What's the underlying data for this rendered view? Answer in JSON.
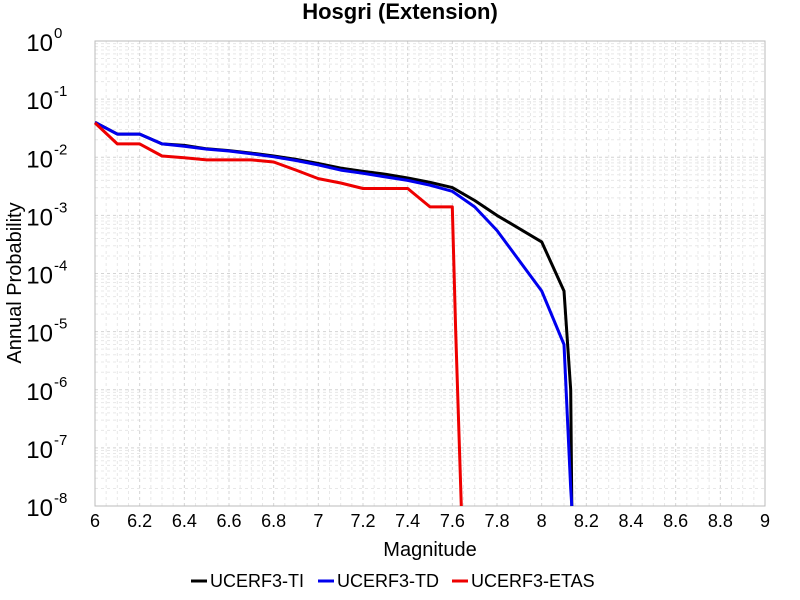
{
  "chart_data": {
    "type": "line",
    "title": "Hosgri (Extension)",
    "xlabel": "Magnitude",
    "ylabel": "Annual Probability",
    "xlim": [
      6,
      9
    ],
    "ylim": [
      1e-08,
      1
    ],
    "yscale": "log",
    "grid": true,
    "legend_position": "bottom",
    "x_ticks": [
      "6",
      "6.2",
      "6.4",
      "6.6",
      "6.8",
      "7",
      "7.2",
      "7.4",
      "7.6",
      "7.8",
      "8",
      "8.2",
      "8.4",
      "8.6",
      "8.8",
      "9"
    ],
    "y_ticks": [
      {
        "base": "10",
        "exp": "0"
      },
      {
        "base": "10",
        "exp": "-1"
      },
      {
        "base": "10",
        "exp": "-2"
      },
      {
        "base": "10",
        "exp": "-3"
      },
      {
        "base": "10",
        "exp": "-4"
      },
      {
        "base": "10",
        "exp": "-5"
      },
      {
        "base": "10",
        "exp": "-6"
      },
      {
        "base": "10",
        "exp": "-7"
      },
      {
        "base": "10",
        "exp": "-8"
      }
    ],
    "series": [
      {
        "name": "UCERF3-TI",
        "color": "#000000",
        "x": [
          6.0,
          6.1,
          6.2,
          6.3,
          6.4,
          6.5,
          6.6,
          6.7,
          6.8,
          6.9,
          7.0,
          7.1,
          7.2,
          7.3,
          7.4,
          7.5,
          7.6,
          7.7,
          7.8,
          8.0,
          8.1,
          8.13,
          8.135
        ],
        "y": [
          0.04,
          0.025,
          0.025,
          0.017,
          0.016,
          0.014,
          0.013,
          0.0118,
          0.0105,
          0.0092,
          0.0078,
          0.0065,
          0.0057,
          0.0051,
          0.0044,
          0.0037,
          0.003,
          0.0018,
          0.001,
          0.00035,
          5e-05,
          1e-06,
          1e-08
        ]
      },
      {
        "name": "UCERF3-TD",
        "color": "#0000ee",
        "x": [
          6.0,
          6.1,
          6.2,
          6.3,
          6.4,
          6.5,
          6.6,
          6.7,
          6.8,
          6.9,
          7.0,
          7.1,
          7.2,
          7.3,
          7.4,
          7.5,
          7.6,
          7.7,
          7.8,
          8.0,
          8.1,
          8.13,
          8.135
        ],
        "y": [
          0.04,
          0.025,
          0.025,
          0.017,
          0.0155,
          0.0138,
          0.0128,
          0.0115,
          0.0102,
          0.0088,
          0.0074,
          0.006,
          0.0053,
          0.0046,
          0.004,
          0.0033,
          0.0026,
          0.0014,
          0.00055,
          5e-05,
          6e-06,
          2e-08,
          1e-08
        ]
      },
      {
        "name": "UCERF3-ETAS",
        "color": "#ee0000",
        "x": [
          6.0,
          6.1,
          6.2,
          6.3,
          6.4,
          6.5,
          6.6,
          6.7,
          6.8,
          6.9,
          7.0,
          7.1,
          7.2,
          7.3,
          7.4,
          7.5,
          7.6,
          7.615,
          7.64
        ],
        "y": [
          0.039,
          0.017,
          0.017,
          0.0105,
          0.0098,
          0.009,
          0.009,
          0.009,
          0.0083,
          0.006,
          0.0043,
          0.0036,
          0.0029,
          0.0029,
          0.0029,
          0.0014,
          0.0014,
          1e-05,
          1e-08
        ]
      }
    ]
  }
}
